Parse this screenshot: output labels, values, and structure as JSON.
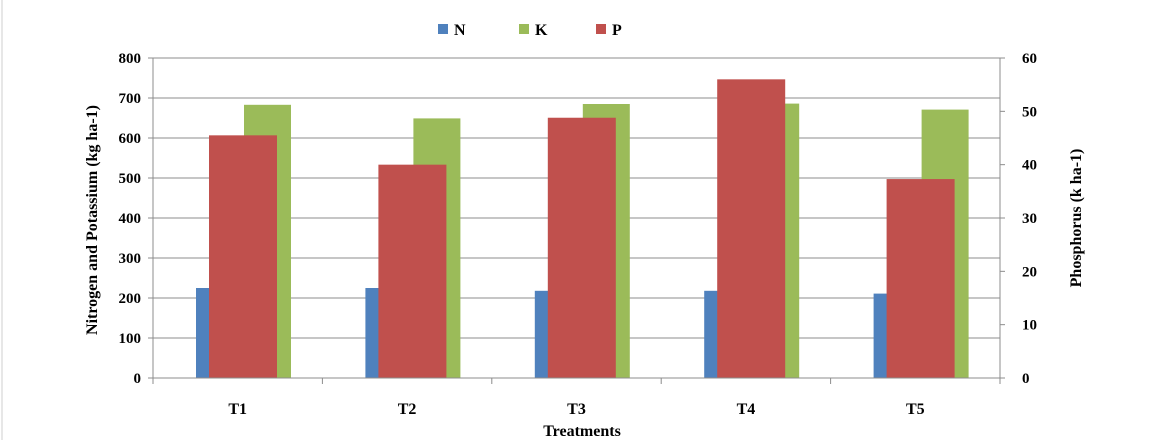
{
  "chart_data": {
    "type": "bar",
    "categories": [
      "T1",
      "T2",
      "T3",
      "T4",
      "T5"
    ],
    "series": [
      {
        "name": "N",
        "axis": "left",
        "color": "#4f81bd",
        "values": [
          225,
          225,
          218,
          218,
          211
        ]
      },
      {
        "name": "K",
        "axis": "left",
        "color": "#9bbb59",
        "values": [
          683,
          649,
          685,
          686,
          671
        ]
      },
      {
        "name": "P",
        "axis": "right",
        "color": "#c0504d",
        "values": [
          45.5,
          40,
          48.8,
          56,
          37.3
        ]
      }
    ],
    "xlabel": "Treatments",
    "ylabel": "Nitrogen and Potassium  (kg ha-1)",
    "y2label": "Phosphorus (k ha-1)",
    "ylim": [
      0,
      800
    ],
    "y2lim": [
      0,
      60
    ],
    "yticks": [
      0,
      100,
      200,
      300,
      400,
      500,
      600,
      700,
      800
    ],
    "y2ticks": [
      0,
      10,
      20,
      30,
      40,
      50,
      60
    ],
    "grid": true,
    "legend_position": "top-center"
  }
}
